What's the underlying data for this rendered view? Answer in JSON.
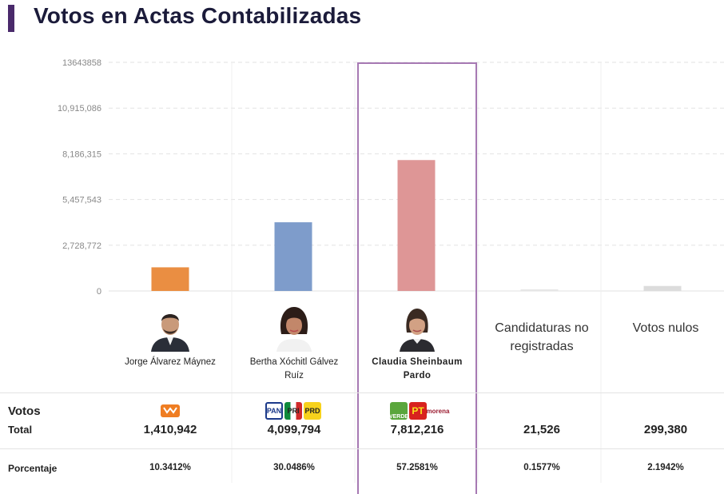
{
  "header": {
    "title": "Votos en Actas Contabilizadas"
  },
  "chart_data": {
    "type": "bar",
    "title": "Votos en Actas Contabilizadas",
    "y_ticks": [
      "0",
      "2,728,772",
      "5,457,543",
      "8,186,315",
      "10,915,086",
      "13643858"
    ],
    "ylim": [
      0,
      13643858
    ],
    "grid": true,
    "categories": [
      "Jorge Álvarez Máynez",
      "Bertha Xóchitl Gálvez Ruíz",
      "Claudia Sheinbaum Pardo",
      "Candidaturas no registradas",
      "Votos nulos"
    ],
    "values": [
      1410942,
      4099794,
      7812216,
      21526,
      299380
    ],
    "colors": [
      "#ea8e42",
      "#7e9ccb",
      "#de9696",
      "#e6e6e6",
      "#dcdcdc"
    ],
    "highlighted_category": "Claudia Sheinbaum Pardo",
    "highlight_color": "#a679b3"
  },
  "candidates": [
    {
      "name": "Jorge Álvarez Máynez",
      "party_logos": [
        "movimiento-ciudadano-logo"
      ],
      "votes": "1,410,942",
      "percent": "10.3412%"
    },
    {
      "name_line1": "Bertha Xóchitl Gálvez",
      "name_line2": "Ruíz",
      "party_logos": [
        "pan-logo",
        "pri-logo",
        "prd-logo"
      ],
      "logo_text": {
        "pan": "PAN",
        "pri": "PRI",
        "prd": "PRD"
      },
      "votes": "4,099,794",
      "percent": "30.0486%"
    },
    {
      "name_line1": "Claudia Sheinbaum",
      "name_line2": "Pardo",
      "party_logos": [
        "verde-logo",
        "pt-logo",
        "morena-logo"
      ],
      "logo_text": {
        "verde": "VERDE",
        "pt": "PT",
        "morena": "morena"
      },
      "votes": "7,812,216",
      "percent": "57.2581%"
    },
    {
      "name_line1": "Candidaturas no",
      "name_line2": "registradas",
      "votes": "21,526",
      "percent": "0.1577%"
    },
    {
      "name": "Votos nulos",
      "votes": "299,380",
      "percent": "2.1942%"
    }
  ],
  "table": {
    "votes_label": "Votos",
    "total_label": "Total",
    "percent_label": "Porcentaje"
  }
}
